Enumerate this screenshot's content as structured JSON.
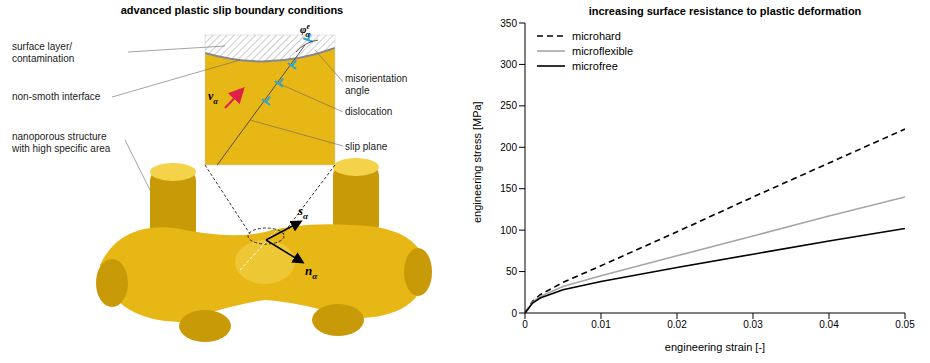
{
  "diagram": {
    "title": "advanced plastic slip boundary conditions",
    "labels": [
      {
        "lines": [
          "surface layer/",
          "contamination"
        ]
      },
      {
        "lines": [
          "non-smoth interface"
        ]
      },
      {
        "lines": [
          "nanoporous structure",
          "with high specific area"
        ]
      },
      {
        "lines": [
          "misorientation",
          "angle"
        ]
      },
      {
        "lines": [
          "dislocation"
        ]
      },
      {
        "lines": [
          "slip plane"
        ]
      }
    ],
    "symbols": [
      {
        "symbol": "φ",
        "sub": "α",
        "sup": "e"
      },
      {
        "symbol": "ν",
        "sub": "α"
      },
      {
        "symbol": "s",
        "sub": "α"
      },
      {
        "symbol": "n",
        "sub": "α"
      }
    ]
  },
  "chart_data": {
    "type": "line",
    "title": "increasing surface resistance to plastic deformation",
    "x_label": "engineering strain [-]",
    "y_label": "engineering stress [MPa]",
    "x": [
      0,
      0.001,
      0.002,
      0.005,
      0.01,
      0.02,
      0.03,
      0.04,
      0.05
    ],
    "series": [
      {
        "name": "microhard",
        "color": "#000000",
        "line_style": "dashed",
        "values": [
          0,
          14,
          22,
          37,
          57,
          98,
          140,
          181,
          222
        ]
      },
      {
        "name": "microflexible",
        "color": "#a6a6a6",
        "line_style": "solid",
        "values": [
          0,
          13,
          20,
          32,
          45,
          69,
          93,
          117,
          140
        ]
      },
      {
        "name": "microfree",
        "color": "#000000",
        "line_style": "solid",
        "values": [
          0,
          12,
          18,
          28,
          38,
          55,
          71,
          87,
          102
        ]
      }
    ],
    "xlim": [
      0,
      0.05
    ],
    "xticks": [
      0,
      0.01,
      0.02,
      0.03,
      0.04,
      0.05
    ],
    "ylim": [
      0,
      350
    ],
    "yticks": [
      0,
      50,
      100,
      150,
      200,
      250,
      300,
      350
    ],
    "legend": "upper left",
    "grid": false
  }
}
